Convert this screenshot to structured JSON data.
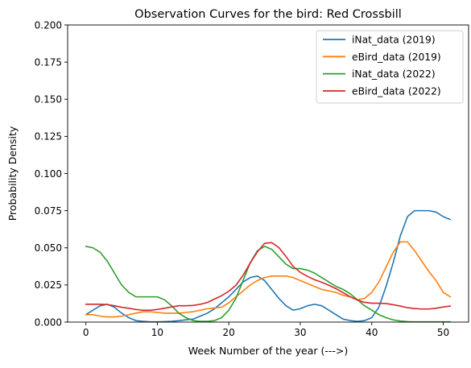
{
  "chart_data": {
    "type": "line",
    "title": "Observation Curves for the bird: Red Crossbill",
    "xlabel": "Week Number of the year (--->)",
    "ylabel": "Probability Density",
    "xlim": [
      -2.55,
      53.55
    ],
    "ylim": [
      0,
      0.2
    ],
    "x_ticks": [
      0,
      10,
      20,
      30,
      40,
      50
    ],
    "y_ticks": [
      0.0,
      0.025,
      0.05,
      0.075,
      0.1,
      0.125,
      0.15,
      0.175,
      0.2
    ],
    "y_tick_labels": [
      "0.000",
      "0.025",
      "0.050",
      "0.075",
      "0.100",
      "0.125",
      "0.150",
      "0.175",
      "0.200"
    ],
    "grid": false,
    "legend_position": "top-right",
    "x": [
      0,
      1,
      2,
      3,
      4,
      5,
      6,
      7,
      8,
      9,
      10,
      11,
      12,
      13,
      14,
      15,
      16,
      17,
      18,
      19,
      20,
      21,
      22,
      23,
      24,
      25,
      26,
      27,
      28,
      29,
      30,
      31,
      32,
      33,
      34,
      35,
      36,
      37,
      38,
      39,
      40,
      41,
      42,
      43,
      44,
      45,
      46,
      47,
      48,
      49,
      50,
      51
    ],
    "series": [
      {
        "name": "iNat_data (2019)",
        "color": "#1f77b4",
        "values": [
          0.005,
          0.008,
          0.011,
          0.012,
          0.01,
          0.006,
          0.003,
          0.001,
          0.0005,
          0.0002,
          0.0002,
          0.0003,
          0.0005,
          0.001,
          0.0015,
          0.002,
          0.004,
          0.006,
          0.009,
          0.013,
          0.017,
          0.022,
          0.027,
          0.03,
          0.031,
          0.028,
          0.022,
          0.016,
          0.011,
          0.008,
          0.009,
          0.011,
          0.012,
          0.011,
          0.008,
          0.005,
          0.002,
          0.001,
          0.0005,
          0.001,
          0.003,
          0.01,
          0.024,
          0.04,
          0.058,
          0.071,
          0.075,
          0.075,
          0.075,
          0.074,
          0.071,
          0.069
        ]
      },
      {
        "name": "eBird_data (2019)",
        "color": "#ff7f0e",
        "values": [
          0.005,
          0.005,
          0.004,
          0.0035,
          0.0035,
          0.004,
          0.005,
          0.006,
          0.007,
          0.007,
          0.0065,
          0.006,
          0.006,
          0.006,
          0.0065,
          0.007,
          0.008,
          0.009,
          0.0095,
          0.01,
          0.013,
          0.017,
          0.021,
          0.025,
          0.028,
          0.03,
          0.031,
          0.031,
          0.031,
          0.03,
          0.028,
          0.026,
          0.024,
          0.022,
          0.021,
          0.02,
          0.018,
          0.017,
          0.015,
          0.016,
          0.02,
          0.027,
          0.037,
          0.047,
          0.054,
          0.054,
          0.048,
          0.041,
          0.034,
          0.028,
          0.02,
          0.017
        ]
      },
      {
        "name": "iNat_data (2022)",
        "color": "#2ca02c",
        "values": [
          0.051,
          0.05,
          0.047,
          0.041,
          0.033,
          0.025,
          0.02,
          0.017,
          0.017,
          0.017,
          0.017,
          0.015,
          0.011,
          0.006,
          0.003,
          0.001,
          0.0005,
          0.0005,
          0.001,
          0.003,
          0.008,
          0.016,
          0.028,
          0.04,
          0.048,
          0.051,
          0.049,
          0.044,
          0.039,
          0.036,
          0.036,
          0.035,
          0.033,
          0.03,
          0.027,
          0.024,
          0.022,
          0.019,
          0.015,
          0.011,
          0.008,
          0.005,
          0.003,
          0.0015,
          0.0007,
          0.0003,
          0.0002,
          0.0002,
          0.0002,
          0.0002,
          0.0002,
          0.0002
        ]
      },
      {
        "name": "eBird_data (2022)",
        "color": "#d62728",
        "values": [
          0.012,
          0.012,
          0.012,
          0.0118,
          0.011,
          0.01,
          0.0093,
          0.0085,
          0.008,
          0.008,
          0.0085,
          0.0093,
          0.0102,
          0.011,
          0.011,
          0.0112,
          0.012,
          0.0132,
          0.0155,
          0.0178,
          0.0208,
          0.0248,
          0.0315,
          0.0398,
          0.0473,
          0.053,
          0.0535,
          0.0502,
          0.0442,
          0.0375,
          0.0335,
          0.0308,
          0.0285,
          0.0268,
          0.0248,
          0.0225,
          0.0198,
          0.017,
          0.0148,
          0.0133,
          0.0127,
          0.0127,
          0.0125,
          0.0117,
          0.0108,
          0.0097,
          0.0091,
          0.0088,
          0.0088,
          0.0093,
          0.0102,
          0.0108
        ]
      }
    ]
  }
}
